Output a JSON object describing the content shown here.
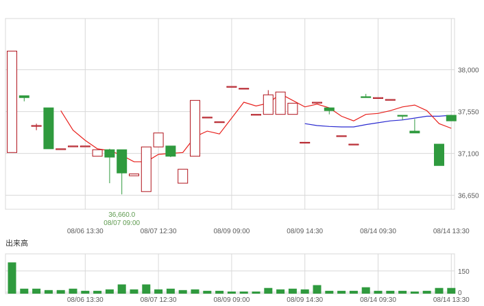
{
  "chart_data": [
    {
      "type": "candlestick",
      "title": "",
      "ylim": [
        36500,
        38550
      ],
      "y_ticks": [
        {
          "value": 38000,
          "label": "38,000"
        },
        {
          "value": 37550,
          "label": "37,550"
        },
        {
          "value": 37100,
          "label": "37,100"
        },
        {
          "value": 36650,
          "label": "36,650"
        }
      ],
      "x_ticks": [
        {
          "index": 6,
          "label": "08/06 13:30"
        },
        {
          "index": 12,
          "label": "08/07 12:30"
        },
        {
          "index": 18,
          "label": "08/09 09:00"
        },
        {
          "index": 24,
          "label": "08/09 14:30"
        },
        {
          "index": 30,
          "label": "08/14 09:30"
        },
        {
          "index": 36,
          "label": "08/14 13:30"
        }
      ],
      "grid": true,
      "colors": {
        "up": "#b0121b",
        "down": "#2f9a3e",
        "ma_short": "#e8201c",
        "ma_long": "#2a2ad0",
        "grid": "#d8d8d8",
        "axis_text": "#5a5a5a",
        "annotation": "#5d9a4e"
      },
      "candles": [
        {
          "o": 37110,
          "h": 38200,
          "l": 37110,
          "c": 38200
        },
        {
          "o": 37720,
          "h": 37720,
          "l": 37660,
          "c": 37700
        },
        {
          "o": 37400,
          "h": 37420,
          "l": 37350,
          "c": 37400
        },
        {
          "o": 37590,
          "h": 37590,
          "l": 37150,
          "c": 37150
        },
        {
          "o": 37150,
          "h": 37150,
          "l": 37150,
          "c": 37150
        },
        {
          "o": 37180,
          "h": 37180,
          "l": 37180,
          "c": 37180
        },
        {
          "o": 37180,
          "h": 37180,
          "l": 37180,
          "c": 37180
        },
        {
          "o": 37070,
          "h": 37140,
          "l": 37070,
          "c": 37140
        },
        {
          "o": 37140,
          "h": 37150,
          "l": 36780,
          "c": 37060
        },
        {
          "o": 37140,
          "h": 37140,
          "l": 36660,
          "c": 36890
        },
        {
          "o": 36860,
          "h": 36880,
          "l": 36860,
          "c": 36880
        },
        {
          "o": 36690,
          "h": 37170,
          "l": 36690,
          "c": 37170
        },
        {
          "o": 37170,
          "h": 37320,
          "l": 37170,
          "c": 37320
        },
        {
          "o": 37180,
          "h": 37180,
          "l": 37060,
          "c": 37070
        },
        {
          "o": 36780,
          "h": 36930,
          "l": 36780,
          "c": 36930
        },
        {
          "o": 37070,
          "h": 37670,
          "l": 37070,
          "c": 37670
        },
        {
          "o": 37490,
          "h": 37490,
          "l": 37490,
          "c": 37490
        },
        {
          "o": 37440,
          "h": 37440,
          "l": 37440,
          "c": 37440
        },
        {
          "o": 37820,
          "h": 37820,
          "l": 37820,
          "c": 37820
        },
        {
          "o": 37800,
          "h": 37800,
          "l": 37800,
          "c": 37800
        },
        {
          "o": 37520,
          "h": 37520,
          "l": 37520,
          "c": 37520
        },
        {
          "o": 37520,
          "h": 37780,
          "l": 37520,
          "c": 37730
        },
        {
          "o": 37520,
          "h": 37760,
          "l": 37520,
          "c": 37760
        },
        {
          "o": 37520,
          "h": 37640,
          "l": 37520,
          "c": 37640
        },
        {
          "o": 37220,
          "h": 37220,
          "l": 37220,
          "c": 37220
        },
        {
          "o": 37650,
          "h": 37650,
          "l": 37650,
          "c": 37650
        },
        {
          "o": 37590,
          "h": 37590,
          "l": 37520,
          "c": 37560
        },
        {
          "o": 37290,
          "h": 37290,
          "l": 37290,
          "c": 37290
        },
        {
          "o": 37200,
          "h": 37200,
          "l": 37200,
          "c": 37200
        },
        {
          "o": 37710,
          "h": 37740,
          "l": 37700,
          "c": 37700
        },
        {
          "o": 37700,
          "h": 37700,
          "l": 37700,
          "c": 37700
        },
        {
          "o": 37680,
          "h": 37680,
          "l": 37680,
          "c": 37680
        },
        {
          "o": 37510,
          "h": 37510,
          "l": 37460,
          "c": 37500
        },
        {
          "o": 37340,
          "h": 37470,
          "l": 37320,
          "c": 37320
        },
        {
          "o": null,
          "h": null,
          "l": null,
          "c": null
        },
        {
          "o": 37200,
          "h": 37200,
          "l": 36970,
          "c": 36970
        },
        {
          "o": 37510,
          "h": 37510,
          "l": 37450,
          "c": 37450
        }
      ],
      "ma_short": [
        null,
        null,
        null,
        null,
        37560,
        37350,
        37240,
        37150,
        37130,
        37080,
        37010,
        37010,
        37090,
        37100,
        37110,
        37280,
        37340,
        37310,
        37480,
        37650,
        37610,
        37640,
        37740,
        37670,
        37600,
        37630,
        37590,
        37500,
        37450,
        37520,
        37530,
        37560,
        37600,
        37620,
        37560,
        37420,
        37370
      ],
      "ma_long": [
        null,
        null,
        null,
        null,
        null,
        null,
        null,
        null,
        null,
        null,
        null,
        null,
        null,
        null,
        null,
        null,
        null,
        null,
        null,
        null,
        null,
        null,
        null,
        null,
        37420,
        37400,
        37390,
        37385,
        37385,
        37410,
        37430,
        37450,
        37460,
        37480,
        37500,
        37500,
        37510
      ],
      "annotation": {
        "index": 9,
        "value": "36,660.0",
        "date": "08/07 09:00"
      }
    },
    {
      "type": "bar",
      "title": "出来高",
      "ylim": [
        -10,
        270
      ],
      "y_ticks": [
        {
          "value": 150,
          "label": "150"
        },
        {
          "value": 0,
          "label": "0"
        }
      ],
      "x_ticks": [
        {
          "index": 6,
          "label": "08/06 13:30"
        },
        {
          "index": 12,
          "label": "08/07 12:30"
        },
        {
          "index": 18,
          "label": "08/09 09:00"
        },
        {
          "index": 24,
          "label": "08/09 14:30"
        },
        {
          "index": 30,
          "label": "08/14 09:30"
        },
        {
          "index": 36,
          "label": "08/14 13:30"
        }
      ],
      "grid": true,
      "bar_color": "#2f9a3e",
      "values": [
        210,
        25,
        25,
        15,
        15,
        25,
        10,
        10,
        20,
        55,
        20,
        55,
        20,
        25,
        15,
        20,
        10,
        10,
        5,
        5,
        5,
        30,
        20,
        25,
        20,
        50,
        10,
        10,
        10,
        35,
        10,
        10,
        10,
        5,
        10,
        30,
        30
      ]
    }
  ]
}
